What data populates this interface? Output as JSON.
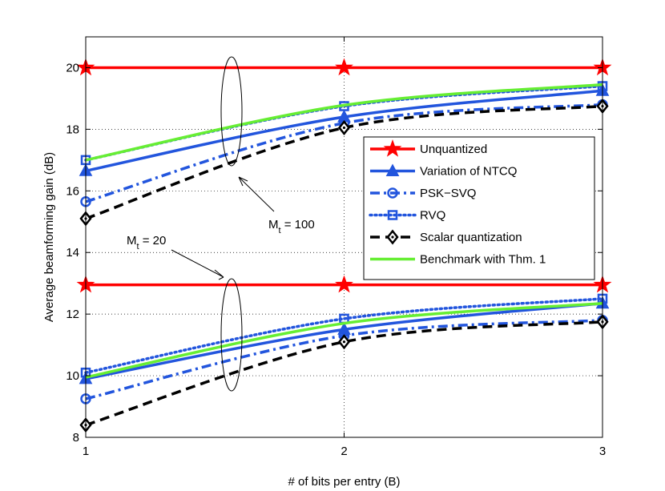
{
  "chart_data": {
    "type": "line",
    "title": "",
    "xlabel": "# of bits per entry (B)",
    "ylabel": "Average beamforming gain (dB)",
    "xlim": [
      1,
      3
    ],
    "ylim": [
      8,
      21
    ],
    "xticks": [
      1,
      2,
      3
    ],
    "yticks": [
      8,
      10,
      12,
      14,
      16,
      18,
      20
    ],
    "grid": true,
    "legend_position": "right",
    "x": [
      1,
      2,
      3
    ],
    "series": [
      {
        "name": "Unquantized",
        "group": "Mt=100",
        "color": "#ff0000",
        "style": "solid",
        "marker": "star",
        "values": [
          20.0,
          20.0,
          20.0
        ]
      },
      {
        "name": "Variation of NTCQ",
        "group": "Mt=100",
        "color": "#2255dd",
        "style": "solid",
        "marker": "triangle",
        "values": [
          16.65,
          18.4,
          19.25
        ]
      },
      {
        "name": "PSK-SVQ",
        "group": "Mt=100",
        "color": "#2255dd",
        "style": "dashdot",
        "marker": "circle",
        "values": [
          15.65,
          18.2,
          18.8
        ]
      },
      {
        "name": "RVQ",
        "group": "Mt=100",
        "color": "#2255dd",
        "style": "dotted",
        "marker": "square",
        "values": [
          17.0,
          18.75,
          19.4
        ]
      },
      {
        "name": "Scalar quantization",
        "group": "Mt=100",
        "color": "#000000",
        "style": "dashed",
        "marker": "diamond",
        "values": [
          15.1,
          18.05,
          18.75
        ]
      },
      {
        "name": "Benchmark with Thm. 1",
        "group": "Mt=100",
        "color": "#66ee33",
        "style": "solid",
        "marker": "none",
        "values": [
          17.0,
          18.78,
          19.45
        ]
      },
      {
        "name": "Unquantized",
        "group": "Mt=20",
        "color": "#ff0000",
        "style": "solid",
        "marker": "star",
        "values": [
          12.95,
          12.95,
          12.95
        ]
      },
      {
        "name": "Variation of NTCQ",
        "group": "Mt=20",
        "color": "#2255dd",
        "style": "solid",
        "marker": "triangle",
        "values": [
          9.9,
          11.5,
          12.35
        ]
      },
      {
        "name": "PSK-SVQ",
        "group": "Mt=20",
        "color": "#2255dd",
        "style": "dashdot",
        "marker": "circle",
        "values": [
          9.25,
          11.3,
          11.8
        ]
      },
      {
        "name": "RVQ",
        "group": "Mt=20",
        "color": "#2255dd",
        "style": "dotted",
        "marker": "square",
        "values": [
          10.1,
          11.85,
          12.5
        ]
      },
      {
        "name": "Scalar quantization",
        "group": "Mt=20",
        "color": "#000000",
        "style": "dashed",
        "marker": "diamond",
        "values": [
          8.4,
          11.1,
          11.75
        ]
      },
      {
        "name": "Benchmark with Thm. 1",
        "group": "Mt=20",
        "color": "#66ee33",
        "style": "solid",
        "marker": "none",
        "values": [
          9.95,
          11.7,
          12.35
        ]
      }
    ],
    "legend": [
      {
        "label": "Unquantized",
        "color": "#ff0000",
        "style": "solid",
        "marker": "star"
      },
      {
        "label": "Variation of NTCQ",
        "color": "#2255dd",
        "style": "solid",
        "marker": "triangle"
      },
      {
        "label": "PSK−SVQ",
        "color": "#2255dd",
        "style": "dashdot",
        "marker": "circle"
      },
      {
        "label": "RVQ",
        "color": "#2255dd",
        "style": "dotted",
        "marker": "square"
      },
      {
        "label": "Scalar quantization",
        "color": "#000000",
        "style": "dashed",
        "marker": "diamond"
      },
      {
        "label": "Benchmark with Thm. 1",
        "color": "#66ee33",
        "style": "solid",
        "marker": "none"
      }
    ],
    "annotations": [
      {
        "main": "M",
        "sub": "t",
        "rest": " = 100"
      },
      {
        "main": "M",
        "sub": "t",
        "rest": " = 20"
      }
    ]
  }
}
